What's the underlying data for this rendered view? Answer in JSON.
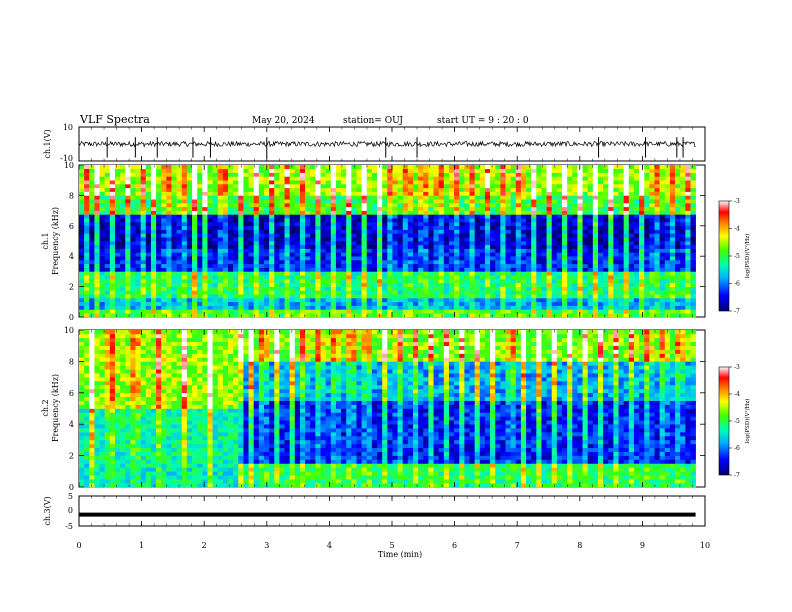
{
  "header": {
    "title": "VLF Spectra",
    "date": "May 20, 2024",
    "station": "station= OUJ",
    "start": "start  UT =   9 : 20 : 0"
  },
  "chart_data": [
    {
      "type": "line",
      "name": "ch1-waveform",
      "ylabel": "ch.1(V)",
      "ylim": [
        -10,
        10
      ],
      "yticks": [
        "10",
        "-10"
      ],
      "xlim": [
        0,
        10
      ],
      "baseline": 0,
      "noise_amplitude": 1.5,
      "spike_times": [
        0.45,
        0.9,
        1.25,
        1.82,
        2.1,
        3.0,
        4.9,
        5.4,
        8.3,
        9.05,
        9.55,
        9.65
      ]
    },
    {
      "type": "heatmap",
      "name": "ch1-spectrogram",
      "ylabel": "ch.1\nFrequency  (kHz)",
      "ylim": [
        0,
        10
      ],
      "yticks": [
        "0",
        "2",
        "4",
        "6",
        "8",
        "10"
      ],
      "xlim": [
        0,
        9.85
      ],
      "colorbar": {
        "label": "log(PSD)(V²/Hz)",
        "range": [
          -7,
          -3
        ],
        "ticks": [
          "-3",
          "-4",
          "-5",
          "-6",
          "-7"
        ]
      },
      "bands": [
        {
          "freq": [
            0,
            0.6
          ],
          "level": -4.9
        },
        {
          "freq": [
            0.6,
            1.2
          ],
          "level": -5.8
        },
        {
          "freq": [
            1.2,
            2.9
          ],
          "level": -5.2
        },
        {
          "freq": [
            2.9,
            4.4
          ],
          "level": -6.4
        },
        {
          "freq": [
            4.4,
            6.8
          ],
          "level": -6.7
        },
        {
          "freq": [
            6.8,
            8.0
          ],
          "level": -5.0
        },
        {
          "freq": [
            8.0,
            10.0
          ],
          "level": -4.6
        }
      ],
      "bursts": [
        0.1,
        0.3,
        0.55,
        0.8,
        1.0,
        1.2,
        1.4,
        1.65,
        1.85,
        2.0,
        2.3,
        2.6,
        2.85,
        3.1,
        3.3,
        3.6,
        3.8,
        4.05,
        4.3,
        4.55,
        4.8,
        5.0,
        5.25,
        5.5,
        5.75,
        6.0,
        6.25,
        6.5,
        6.8,
        7.05,
        7.25,
        7.5,
        7.75,
        8.0,
        8.25,
        8.5,
        8.75,
        9.0,
        9.2,
        9.45,
        9.7
      ]
    },
    {
      "type": "heatmap",
      "name": "ch2-spectrogram",
      "ylabel": "ch.2\nFrequency  (kHz)",
      "ylim": [
        0,
        10
      ],
      "yticks": [
        "0",
        "2",
        "4",
        "6",
        "8",
        "10"
      ],
      "xlim": [
        0,
        9.85
      ],
      "colorbar": {
        "label": "log(PSD)(V²/Hz)",
        "range": [
          -7,
          -3
        ],
        "ticks": [
          "-3",
          "-4",
          "-5",
          "-6",
          "-7"
        ]
      },
      "segment_change_time": 2.55,
      "bands_before": [
        {
          "freq": [
            0,
            1.5
          ],
          "level": -5.4
        },
        {
          "freq": [
            1.5,
            5.0
          ],
          "level": -5.3
        },
        {
          "freq": [
            5.0,
            10.0
          ],
          "level": -4.6
        }
      ],
      "bands_after": [
        {
          "freq": [
            0,
            1.5
          ],
          "level": -5.1
        },
        {
          "freq": [
            1.5,
            5.5
          ],
          "level": -6.4
        },
        {
          "freq": [
            5.5,
            8.0
          ],
          "level": -5.8
        },
        {
          "freq": [
            8.0,
            10.0
          ],
          "level": -4.7
        }
      ],
      "bursts": [
        0.2,
        0.5,
        0.9,
        1.3,
        1.7,
        2.1,
        2.6,
        2.75,
        2.95,
        3.15,
        3.4,
        3.6,
        3.85,
        4.1,
        4.35,
        4.6,
        4.9,
        5.1,
        5.35,
        5.6,
        5.85,
        6.1,
        6.35,
        6.6,
        6.9,
        7.1,
        7.35,
        7.6,
        7.85,
        8.1,
        8.35,
        8.6,
        8.85,
        9.1,
        9.35,
        9.6
      ]
    },
    {
      "type": "line",
      "name": "ch3-waveform",
      "ylabel": "ch.3(V)",
      "ylim": [
        -5,
        5
      ],
      "yticks": [
        "5",
        "0",
        "-5"
      ],
      "xlim": [
        0,
        9.85
      ],
      "xlabel": "Time  (min)",
      "xticks": [
        "0",
        "1",
        "2",
        "3",
        "4",
        "5",
        "6",
        "7",
        "8",
        "9",
        "10"
      ],
      "value": -1.2
    }
  ]
}
